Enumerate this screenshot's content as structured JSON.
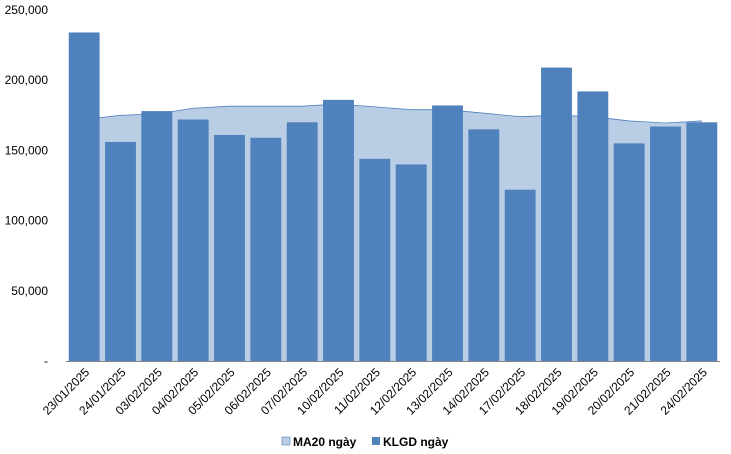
{
  "chart_data": {
    "type": "bar",
    "categories": [
      "23/01/2025",
      "24/01/2025",
      "03/02/2025",
      "04/02/2025",
      "05/02/2025",
      "06/02/2025",
      "07/02/2025",
      "10/02/2025",
      "11/02/2025",
      "12/02/2025",
      "13/02/2025",
      "14/02/2025",
      "17/02/2025",
      "18/02/2025",
      "19/02/2025",
      "20/02/2025",
      "21/02/2025",
      "24/02/2025"
    ],
    "series": [
      {
        "name": "KLGD ngày",
        "type": "bar",
        "color": "#4f81bd",
        "values": [
          234000,
          156000,
          178000,
          172000,
          161000,
          159000,
          170000,
          186000,
          144000,
          140000,
          182000,
          165000,
          122000,
          209000,
          192000,
          155000,
          167000,
          170000
        ]
      },
      {
        "name": "MA20 ngày",
        "type": "area",
        "color": "#b9cde5",
        "line_color": "#4f81bd",
        "values": [
          172000,
          175000,
          176000,
          180000,
          181500,
          181500,
          181500,
          183000,
          181000,
          179000,
          179000,
          176500,
          174000,
          175000,
          174000,
          171000,
          169500,
          171000
        ]
      }
    ],
    "ylim": [
      0,
      250000
    ],
    "yticks": [
      0,
      50000,
      100000,
      150000,
      200000,
      250000
    ],
    "ytick_labels": [
      "-",
      "50,000",
      "100,000",
      "150,000",
      "200,000",
      "250,000"
    ],
    "legend_position": "bottom",
    "grid": false
  }
}
